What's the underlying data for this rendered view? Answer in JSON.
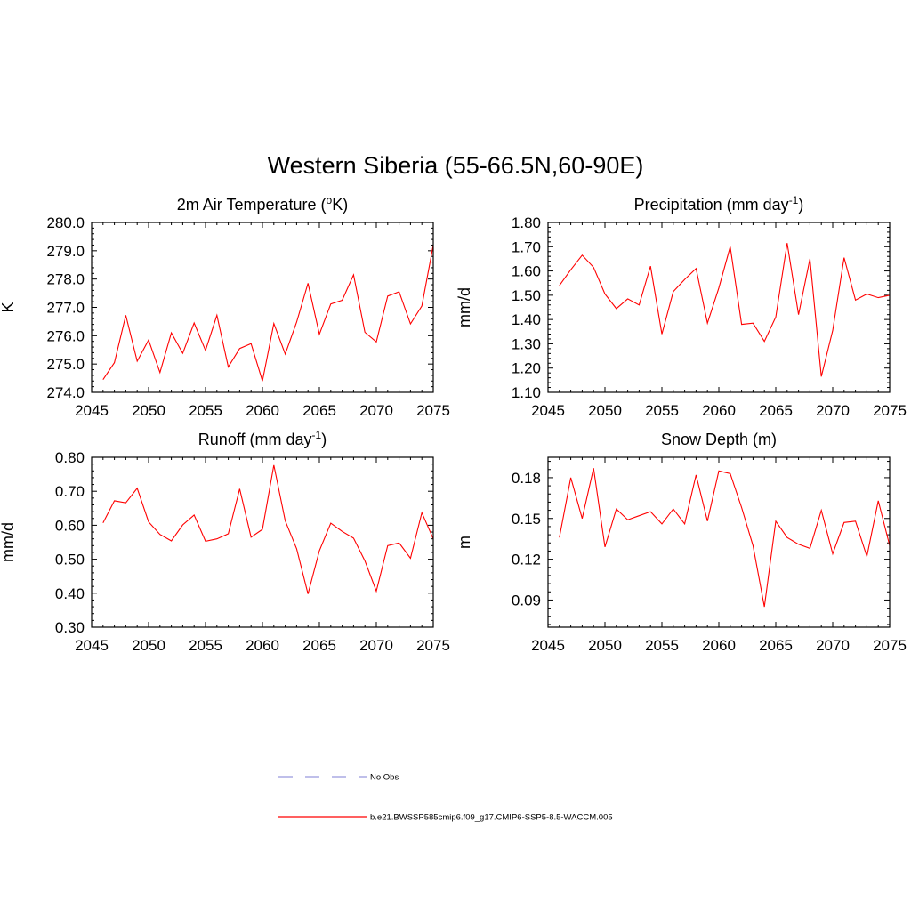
{
  "figure": {
    "title": "Western Siberia (55-66.5N,60-90E)"
  },
  "legend": {
    "entries": [
      {
        "label": "No Obs",
        "style": "dashed",
        "color": "#9999dd"
      },
      {
        "label": "b.e21.BWSSP585cmip6.f09_g17.CMIP6-SSP5-8.5-WACCM.005",
        "style": "solid",
        "color": "#ff0000"
      }
    ]
  },
  "chart_data": [
    {
      "type": "line",
      "title": "2m Air Temperature (",
      "title_sup": "o",
      "title_tail": "K)",
      "ylabel": "K",
      "xlim": [
        2045,
        2075
      ],
      "ylim": [
        274.0,
        280.0
      ],
      "xticks": [
        2045,
        2050,
        2055,
        2060,
        2065,
        2070,
        2075
      ],
      "yticks": [
        274.0,
        275.0,
        276.0,
        277.0,
        278.0,
        279.0,
        280.0
      ],
      "ytick_labels": [
        "274.0",
        "275.0",
        "276.0",
        "277.0",
        "278.0",
        "279.0",
        "280.0"
      ],
      "series": [
        {
          "color": "#ff0000",
          "x": [
            2046,
            2047,
            2048,
            2049,
            2050,
            2051,
            2052,
            2053,
            2054,
            2055,
            2056,
            2057,
            2058,
            2059,
            2060,
            2061,
            2062,
            2063,
            2064,
            2065,
            2066,
            2067,
            2068,
            2069,
            2070,
            2071,
            2072,
            2073,
            2074,
            2075
          ],
          "values": [
            274.45,
            275.05,
            276.72,
            275.1,
            275.85,
            274.7,
            276.1,
            275.38,
            276.45,
            275.48,
            276.72,
            274.9,
            275.55,
            275.72,
            274.4,
            276.43,
            275.35,
            276.48,
            277.85,
            276.05,
            277.12,
            277.25,
            278.15,
            276.12,
            275.78,
            277.4,
            277.55,
            276.42,
            277.05,
            279.2
          ]
        }
      ]
    },
    {
      "type": "line",
      "title": "Precipitation (mm day",
      "title_sup": "-1",
      "title_tail": ")",
      "ylabel": "mm/d",
      "xlim": [
        2045,
        2075
      ],
      "ylim": [
        1.1,
        1.8
      ],
      "xticks": [
        2045,
        2050,
        2055,
        2060,
        2065,
        2070,
        2075
      ],
      "yticks": [
        1.1,
        1.2,
        1.3,
        1.4,
        1.5,
        1.6,
        1.7,
        1.8
      ],
      "ytick_labels": [
        "1.10",
        "1.20",
        "1.30",
        "1.40",
        "1.50",
        "1.60",
        "1.70",
        "1.80"
      ],
      "series": [
        {
          "color": "#ff0000",
          "x": [
            2046,
            2047,
            2048,
            2049,
            2050,
            2051,
            2052,
            2053,
            2054,
            2055,
            2056,
            2057,
            2058,
            2059,
            2060,
            2061,
            2062,
            2063,
            2064,
            2065,
            2066,
            2067,
            2068,
            2069,
            2070,
            2071,
            2072,
            2073,
            2074,
            2075
          ],
          "values": [
            1.54,
            1.605,
            1.665,
            1.615,
            1.505,
            1.445,
            1.485,
            1.46,
            1.62,
            1.34,
            1.515,
            1.565,
            1.61,
            1.385,
            1.53,
            1.7,
            1.38,
            1.385,
            1.31,
            1.41,
            1.715,
            1.42,
            1.65,
            1.165,
            1.355,
            1.655,
            1.48,
            1.505,
            1.49,
            1.5
          ]
        }
      ]
    },
    {
      "type": "line",
      "title": "Runoff (mm day",
      "title_sup": "-1",
      "title_tail": ")",
      "ylabel": "mm/d",
      "xlim": [
        2045,
        2075
      ],
      "ylim": [
        0.3,
        0.8
      ],
      "xticks": [
        2045,
        2050,
        2055,
        2060,
        2065,
        2070,
        2075
      ],
      "yticks": [
        0.3,
        0.4,
        0.5,
        0.6,
        0.7,
        0.8
      ],
      "ytick_labels": [
        "0.30",
        "0.40",
        "0.50",
        "0.60",
        "0.70",
        "0.80"
      ],
      "series": [
        {
          "color": "#ff0000",
          "x": [
            2046,
            2047,
            2048,
            2049,
            2050,
            2051,
            2052,
            2053,
            2054,
            2055,
            2056,
            2057,
            2058,
            2059,
            2060,
            2061,
            2062,
            2063,
            2064,
            2065,
            2066,
            2067,
            2068,
            2069,
            2070,
            2071,
            2072,
            2073,
            2074,
            2075
          ],
          "values": [
            0.607,
            0.672,
            0.666,
            0.709,
            0.61,
            0.573,
            0.554,
            0.601,
            0.63,
            0.553,
            0.56,
            0.575,
            0.707,
            0.565,
            0.588,
            0.777,
            0.613,
            0.531,
            0.398,
            0.525,
            0.606,
            0.582,
            0.562,
            0.495,
            0.406,
            0.54,
            0.548,
            0.503,
            0.637,
            0.56
          ]
        }
      ]
    },
    {
      "type": "line",
      "title": "Snow Depth (m)",
      "title_sup": "",
      "title_tail": "",
      "ylabel": "m",
      "xlim": [
        2045,
        2075
      ],
      "ylim": [
        0.07,
        0.195
      ],
      "xticks": [
        2045,
        2050,
        2055,
        2060,
        2065,
        2070,
        2075
      ],
      "yticks": [
        0.09,
        0.12,
        0.15,
        0.18
      ],
      "ytick_labels": [
        "0.09",
        "0.12",
        "0.15",
        "0.18"
      ],
      "series": [
        {
          "color": "#ff0000",
          "x": [
            2046,
            2047,
            2048,
            2049,
            2050,
            2051,
            2052,
            2053,
            2054,
            2055,
            2056,
            2057,
            2058,
            2059,
            2060,
            2061,
            2062,
            2063,
            2064,
            2065,
            2066,
            2067,
            2068,
            2069,
            2070,
            2071,
            2072,
            2073,
            2074,
            2075
          ],
          "values": [
            0.136,
            0.18,
            0.15,
            0.187,
            0.129,
            0.157,
            0.149,
            0.152,
            0.155,
            0.146,
            0.157,
            0.146,
            0.182,
            0.148,
            0.185,
            0.183,
            0.158,
            0.13,
            0.085,
            0.148,
            0.136,
            0.131,
            0.128,
            0.156,
            0.124,
            0.147,
            0.148,
            0.122,
            0.163,
            0.13
          ]
        }
      ]
    }
  ]
}
